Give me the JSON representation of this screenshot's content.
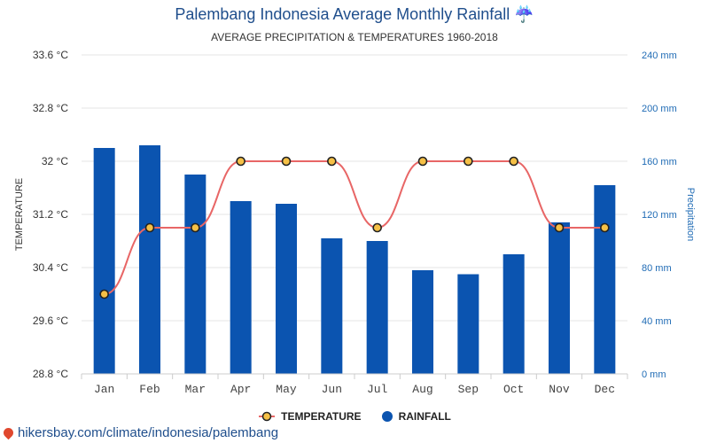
{
  "header": {
    "title": "Palembang Indonesia Average Monthly Rainfall ☔",
    "subtitle": "AVERAGE PRECIPITATION & TEMPERATURES 1960-2018"
  },
  "footer": {
    "link_text": "hikersbay.com/climate/indonesia/palembang"
  },
  "legend": {
    "temperature_label": "TEMPERATURE",
    "rainfall_label": "RAINFALL"
  },
  "colors": {
    "bar": "#0b54b0",
    "line": "#e86666",
    "marker_fill": "#f5c046",
    "marker_stroke": "#222222",
    "grid": "#e6e6e6",
    "right_axis_text": "#1f6bb5"
  },
  "chart_data": {
    "type": "bar",
    "categories": [
      "Jan",
      "Feb",
      "Mar",
      "Apr",
      "May",
      "Jun",
      "Jul",
      "Aug",
      "Sep",
      "Oct",
      "Nov",
      "Dec"
    ],
    "series": [
      {
        "name": "RAINFALL",
        "type": "bar",
        "axis": "right",
        "values": [
          170,
          172,
          150,
          130,
          128,
          102,
          100,
          78,
          75,
          90,
          114,
          142
        ]
      },
      {
        "name": "TEMPERATURE",
        "type": "line",
        "axis": "left",
        "values": [
          30.0,
          31.0,
          31.0,
          32.0,
          32.0,
          32.0,
          31.0,
          32.0,
          32.0,
          32.0,
          31.0,
          31.0
        ]
      }
    ],
    "left_axis": {
      "label": "TEMPERATURE",
      "range": [
        28.8,
        33.6
      ],
      "ticks": [
        "28.8 °C",
        "29.6 °C",
        "30.4 °C",
        "31.2 °C",
        "32 °C",
        "32.8 °C",
        "33.6 °C"
      ],
      "tick_values": [
        28.8,
        29.6,
        30.4,
        31.2,
        32.0,
        32.8,
        33.6
      ]
    },
    "right_axis": {
      "label": "Precipitation",
      "range": [
        0,
        240
      ],
      "ticks": [
        "0 mm",
        "40 mm",
        "80 mm",
        "120 mm",
        "160 mm",
        "200 mm",
        "240 mm"
      ],
      "tick_values": [
        0,
        40,
        80,
        120,
        160,
        200,
        240
      ]
    },
    "grid": true,
    "legend_position": "bottom"
  }
}
